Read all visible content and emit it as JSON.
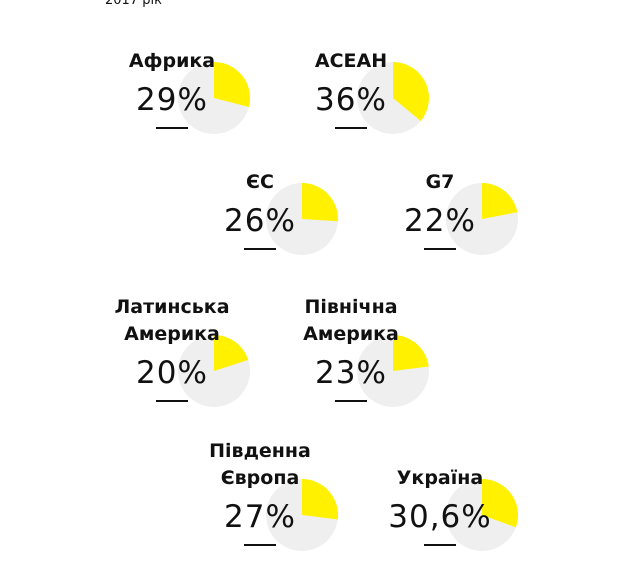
{
  "chart_data": {
    "type": "pie",
    "subtitle": "2017 рік",
    "categories": [
      "Африка",
      "АСЕАН",
      "ЄС",
      "G7",
      "Латинська Америка",
      "Північна Америка",
      "Південна Європа",
      "Україна"
    ],
    "values": [
      29,
      36,
      26,
      22,
      20,
      23,
      27,
      30.6
    ],
    "value_labels": [
      "29%",
      "36%",
      "26%",
      "22%",
      "20%",
      "23%",
      "27%",
      "30,6%"
    ],
    "color": "#fff100",
    "rest_color": "#efefef"
  }
}
